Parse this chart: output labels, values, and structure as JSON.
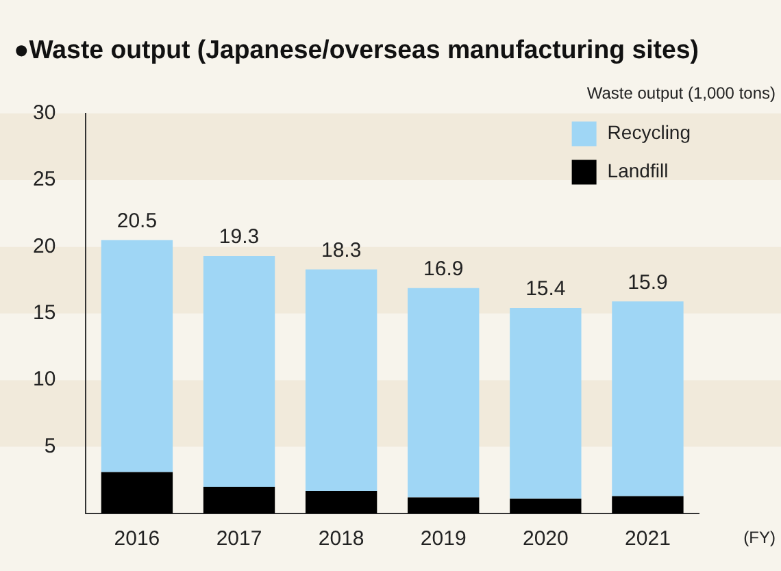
{
  "chart_data": {
    "type": "bar",
    "title": "●Waste output (Japanese/overseas manufacturing sites)",
    "ylabel": "Waste output (1,000 tons)",
    "xlabel": "(FY)",
    "categories": [
      "2016",
      "2017",
      "2018",
      "2019",
      "2020",
      "2021"
    ],
    "series": [
      {
        "name": "Landfill",
        "color": "#000000",
        "values": [
          3.1,
          2.0,
          1.7,
          1.2,
          1.1,
          1.3
        ]
      },
      {
        "name": "Recycling",
        "color": "#9fd6f5",
        "values": [
          17.4,
          17.3,
          16.6,
          15.7,
          14.3,
          14.6
        ]
      }
    ],
    "stacked": true,
    "totals": [
      "20.5",
      "19.3",
      "18.3",
      "16.9",
      "15.4",
      "15.9"
    ],
    "ylim": [
      0,
      30
    ],
    "yticks": [
      5,
      10,
      15,
      20,
      25,
      30
    ],
    "legend": "top right"
  }
}
